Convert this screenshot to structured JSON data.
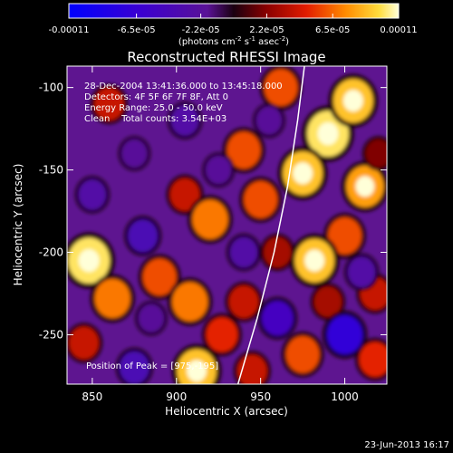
{
  "chart_data": {
    "type": "heatmap",
    "title": "Reconstructed RHESSI Image",
    "xlabel": "Heliocentric X (arcsec)",
    "ylabel": "Heliocentric Y (arcsec)",
    "xlim": [
      835,
      1025
    ],
    "ylim": [
      -280,
      -87
    ],
    "x_ticks": [
      850,
      900,
      950,
      1000
    ],
    "x_tick_labels": [
      "850",
      "900",
      "950",
      "1000"
    ],
    "y_ticks": [
      -100,
      -150,
      -200,
      -250
    ],
    "y_tick_labels": [
      "-100",
      "-150",
      "-200",
      "-250"
    ],
    "colorbar": {
      "min": -0.00011,
      "max": 0.00011,
      "tick_labels": [
        "-0.00011",
        "-6.5e-05",
        "-2.2e-05",
        "2.2e-05",
        "6.5e-05",
        "0.00011"
      ],
      "unit_base": "(photons cm",
      "unit_exp1": "-2",
      "unit_mid": " s",
      "unit_exp2": "-1",
      "unit_mid2": " asec",
      "unit_exp3": "-2",
      "unit_end": ")"
    },
    "blobs": [
      {
        "x": 990,
        "y": -128,
        "value": 0.0001
      },
      {
        "x": 1005,
        "y": -108,
        "value": 9e-05
      },
      {
        "x": 962,
        "y": -100,
        "value": 6e-05
      },
      {
        "x": 975,
        "y": -152,
        "value": 9e-05
      },
      {
        "x": 1012,
        "y": -160,
        "value": 8e-05
      },
      {
        "x": 940,
        "y": -138,
        "value": 6e-05
      },
      {
        "x": 950,
        "y": -168,
        "value": 6e-05
      },
      {
        "x": 1000,
        "y": -190,
        "value": 6e-05
      },
      {
        "x": 982,
        "y": -205,
        "value": 9e-05
      },
      {
        "x": 960,
        "y": -200,
        "value": 3e-05
      },
      {
        "x": 905,
        "y": -165,
        "value": 4e-05
      },
      {
        "x": 920,
        "y": -180,
        "value": 7e-05
      },
      {
        "x": 860,
        "y": -110,
        "value": 4e-05
      },
      {
        "x": 848,
        "y": -205,
        "value": 0.0001
      },
      {
        "x": 862,
        "y": -228,
        "value": 7e-05
      },
      {
        "x": 890,
        "y": -215,
        "value": 6e-05
      },
      {
        "x": 908,
        "y": -230,
        "value": 7e-05
      },
      {
        "x": 927,
        "y": -250,
        "value": 5e-05
      },
      {
        "x": 940,
        "y": -230,
        "value": 4e-05
      },
      {
        "x": 912,
        "y": -272,
        "value": 9e-05
      },
      {
        "x": 945,
        "y": -272,
        "value": 4e-05
      },
      {
        "x": 975,
        "y": -262,
        "value": 6e-05
      },
      {
        "x": 990,
        "y": -230,
        "value": 3e-05
      },
      {
        "x": 1018,
        "y": -225,
        "value": 4e-05
      },
      {
        "x": 1018,
        "y": -265,
        "value": 5e-05
      },
      {
        "x": 845,
        "y": -255,
        "value": 4e-05
      },
      {
        "x": 875,
        "y": -140,
        "value": -2e-05
      },
      {
        "x": 850,
        "y": -165,
        "value": -3e-05
      },
      {
        "x": 905,
        "y": -120,
        "value": -3e-05
      },
      {
        "x": 925,
        "y": -150,
        "value": -2e-05
      },
      {
        "x": 940,
        "y": -200,
        "value": -3e-05
      },
      {
        "x": 1000,
        "y": -250,
        "value": -7e-05
      },
      {
        "x": 960,
        "y": -240,
        "value": -5e-05
      },
      {
        "x": 1010,
        "y": -212,
        "value": -3e-05
      },
      {
        "x": 875,
        "y": -270,
        "value": -4e-05
      },
      {
        "x": 885,
        "y": -240,
        "value": -2e-05
      },
      {
        "x": 955,
        "y": -120,
        "value": -2e-05
      },
      {
        "x": 880,
        "y": -190,
        "value": -4e-05
      },
      {
        "x": 1020,
        "y": -140,
        "value": 2e-05
      }
    ],
    "limb_curve": [
      {
        "x": 936,
        "y": -282
      },
      {
        "x": 948,
        "y": -240
      },
      {
        "x": 958,
        "y": -200
      },
      {
        "x": 966,
        "y": -160
      },
      {
        "x": 972,
        "y": -120
      },
      {
        "x": 976,
        "y": -87
      }
    ],
    "annotations": {
      "line1": "28-Dec-2004 13:41:36.000 to 13:45:18.000",
      "line2": "Detectors: 4F 5F 6F 7F 8F, Att 0",
      "line3": "Energy Range: 25.0 - 50.0 keV",
      "line4": "Clean    Total counts: 3.54E+03",
      "peak": "Position of Peak = [975,-195]"
    },
    "footer_date": "23-Jun-2013 16:17"
  }
}
